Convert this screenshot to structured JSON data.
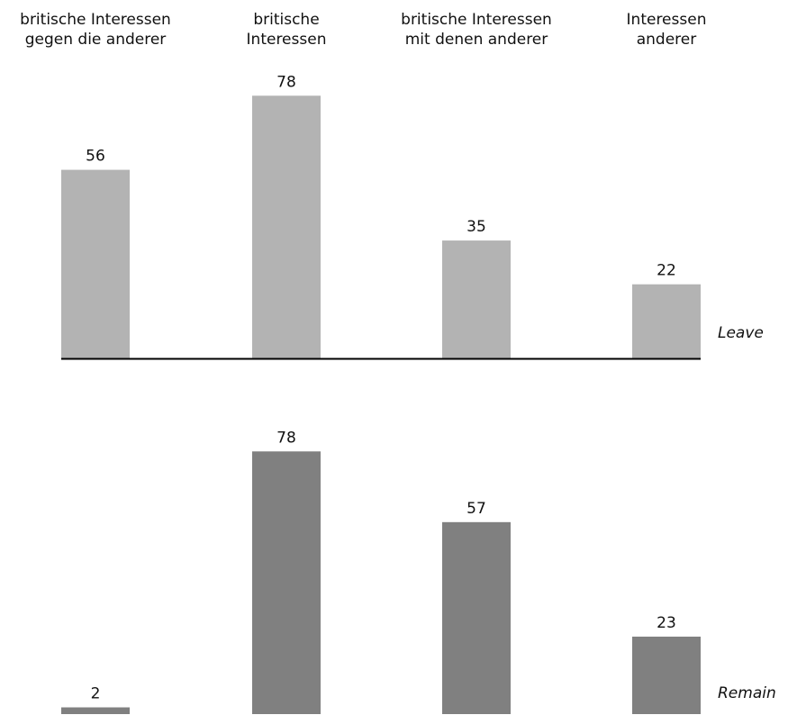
{
  "chart_data": {
    "type": "bar",
    "categories": [
      [
        "britische Interessen",
        "gegen die anderer"
      ],
      [
        "britische",
        "Interessen"
      ],
      [
        "britische Interessen",
        "mit denen anderer"
      ],
      [
        "Interessen",
        "anderer"
      ]
    ],
    "series": [
      {
        "name": "Leave",
        "values": [
          56,
          78,
          35,
          22
        ],
        "color": "#b3b3b3"
      },
      {
        "name": "Remain",
        "values": [
          2,
          78,
          57,
          23
        ],
        "color": "#808080"
      }
    ],
    "ylim": [
      0,
      78
    ],
    "grid": false,
    "axis_color": "#000000"
  }
}
